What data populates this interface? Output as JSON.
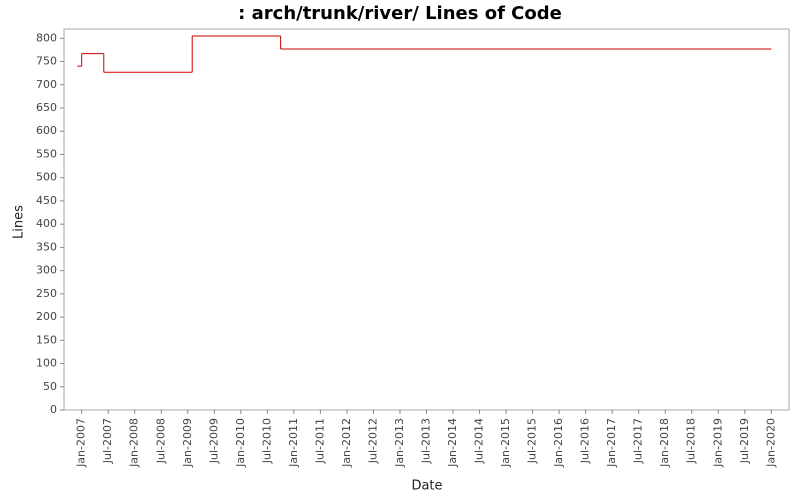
{
  "chart_data": {
    "type": "step",
    "title": ": arch/trunk/river/ Lines of Code",
    "x_label": "Date",
    "y_label": "Lines",
    "x": [
      "2006-12",
      "2007-01",
      "2007-06",
      "2009-02",
      "2010-10",
      "2020-01"
    ],
    "series": [
      {
        "name": "Lines",
        "color": "#cc0000",
        "values": [
          740,
          767,
          727,
          805,
          777,
          777
        ]
      }
    ],
    "xlim": [
      "2006-09",
      "2020-05"
    ],
    "xticks": [
      {
        "value": "2007-01",
        "label": "Jan-2007"
      },
      {
        "value": "2007-07",
        "label": "Jul-2007"
      },
      {
        "value": "2008-01",
        "label": "Jan-2008"
      },
      {
        "value": "2008-07",
        "label": "Jul-2008"
      },
      {
        "value": "2009-01",
        "label": "Jan-2009"
      },
      {
        "value": "2009-07",
        "label": "Jul-2009"
      },
      {
        "value": "2010-01",
        "label": "Jan-2010"
      },
      {
        "value": "2010-07",
        "label": "Jul-2010"
      },
      {
        "value": "2011-01",
        "label": "Jan-2011"
      },
      {
        "value": "2011-07",
        "label": "Jul-2011"
      },
      {
        "value": "2012-01",
        "label": "Jan-2012"
      },
      {
        "value": "2012-07",
        "label": "Jul-2012"
      },
      {
        "value": "2013-01",
        "label": "Jan-2013"
      },
      {
        "value": "2013-07",
        "label": "Jul-2013"
      },
      {
        "value": "2014-01",
        "label": "Jan-2014"
      },
      {
        "value": "2014-07",
        "label": "Jul-2014"
      },
      {
        "value": "2015-01",
        "label": "Jan-2015"
      },
      {
        "value": "2015-07",
        "label": "Jul-2015"
      },
      {
        "value": "2016-01",
        "label": "Jan-2016"
      },
      {
        "value": "2016-07",
        "label": "Jul-2016"
      },
      {
        "value": "2017-01",
        "label": "Jan-2017"
      },
      {
        "value": "2017-07",
        "label": "Jul-2017"
      },
      {
        "value": "2018-01",
        "label": "Jan-2018"
      },
      {
        "value": "2018-07",
        "label": "Jul-2018"
      },
      {
        "value": "2019-01",
        "label": "Jan-2019"
      },
      {
        "value": "2019-07",
        "label": "Jul-2019"
      },
      {
        "value": "2020-01",
        "label": "Jan-2020"
      }
    ],
    "ylim": [
      0,
      820
    ],
    "yticks": [
      0,
      50,
      100,
      150,
      200,
      250,
      300,
      350,
      400,
      450,
      500,
      550,
      600,
      650,
      700,
      750,
      800
    ],
    "grid": false
  }
}
